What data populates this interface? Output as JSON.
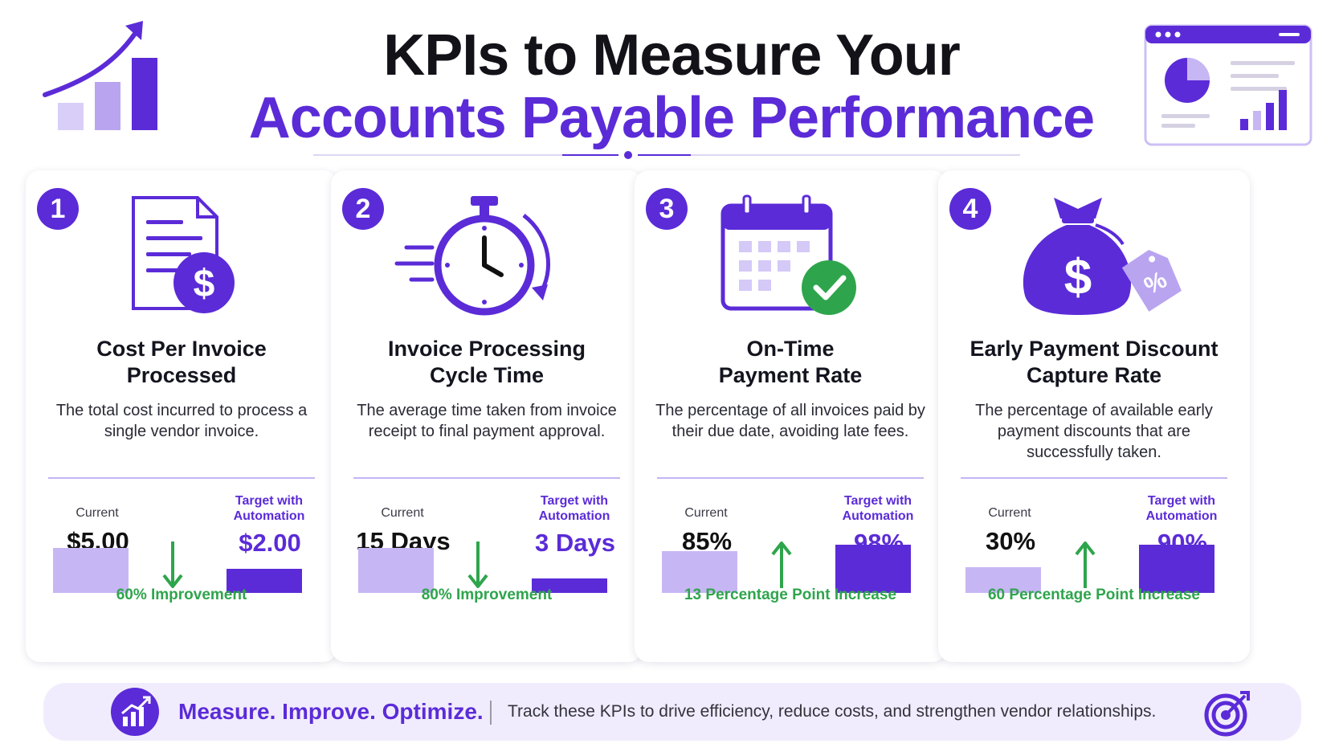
{
  "header": {
    "title_line1": "KPIs to Measure Your",
    "title_line2": "Accounts Payable Performance",
    "left_icon": "growth-chart-icon",
    "right_icon": "dashboard-icon"
  },
  "colors": {
    "primary": "#5b2bd8",
    "light": "#c7b6f4",
    "green": "#2ea54c"
  },
  "cards": [
    {
      "number": "1",
      "icon": "invoice-dollar-icon",
      "title_line1": "Cost Per Invoice",
      "title_line2": "Processed",
      "description": "The total cost incurred to process a single vendor invoice.",
      "current_label": "Current",
      "current_value": "$5.00",
      "target_label_line1": "Target with",
      "target_label_line2": "Automation",
      "target_value": "$2.00",
      "direction": "down",
      "improvement": "60% Improvement"
    },
    {
      "number": "2",
      "icon": "stopwatch-icon",
      "title_line1": "Invoice Processing",
      "title_line2": "Cycle Time",
      "description": "The average time taken from invoice receipt to final payment approval.",
      "current_label": "Current",
      "current_value": "15 Days",
      "target_label_line1": "Target with",
      "target_label_line2": "Automation",
      "target_value": "3 Days",
      "direction": "down",
      "improvement": "80% Improvement"
    },
    {
      "number": "3",
      "icon": "calendar-check-icon",
      "title_line1": "On-Time",
      "title_line2": "Payment Rate",
      "description": "The percentage of all invoices paid by their due date, avoiding late fees.",
      "current_label": "Current",
      "current_value": "85%",
      "target_label_line1": "Target with",
      "target_label_line2": "Automation",
      "target_value": "98%",
      "direction": "up",
      "improvement": "13 Percentage Point Increase"
    },
    {
      "number": "4",
      "icon": "money-bag-discount-icon",
      "title_line1": "Early Payment Discount",
      "title_line2": "Capture Rate",
      "description": "The percentage of available early payment discounts that are successfully taken.",
      "current_label": "Current",
      "current_value": "30%",
      "target_label_line1": "Target with",
      "target_label_line2": "Automation",
      "target_value": "90%",
      "direction": "up",
      "improvement": "60 Percentage Point Increase"
    }
  ],
  "footer": {
    "icon": "bar-chart-icon",
    "tagline": "Measure. Improve. Optimize.",
    "text": "Track these KPIs to drive efficiency, reduce costs, and strengthen vendor relationships.",
    "right_icon": "target-icon"
  }
}
